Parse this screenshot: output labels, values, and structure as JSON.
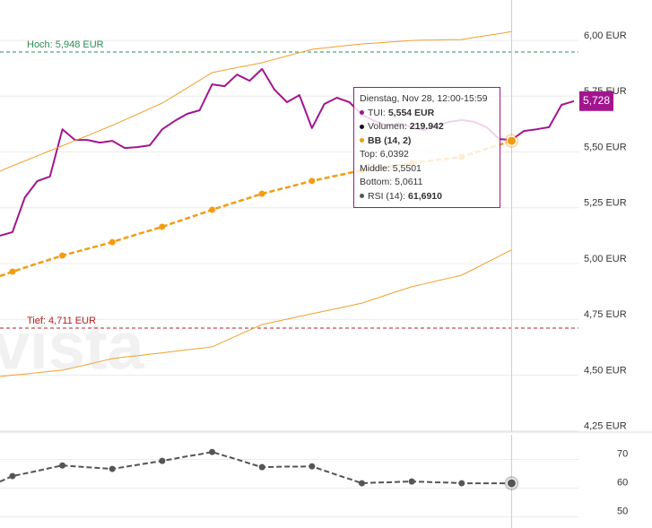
{
  "chart_data": [
    {
      "type": "line",
      "categories": [
        null,
        null,
        null,
        null,
        null,
        null,
        null,
        null,
        null,
        null,
        null,
        null,
        null,
        null,
        null,
        null,
        null,
        null,
        null,
        null,
        null,
        null,
        null,
        null,
        null,
        null,
        null,
        null,
        null,
        null,
        null,
        null,
        null,
        null,
        null,
        null,
        null,
        null,
        null,
        null,
        null,
        null,
        null,
        null,
        null,
        null,
        null
      ],
      "ylim": [
        4.245,
        6.181
      ],
      "yticks": [
        {
          "value": 6.0,
          "label": "6,00 EUR"
        },
        {
          "value": 5.75,
          "label": "5,75 EUR"
        },
        {
          "value": 5.5,
          "label": "5,50 EUR"
        },
        {
          "value": 5.25,
          "label": "5,25 EUR"
        },
        {
          "value": 5.0,
          "label": "5,00 EUR"
        },
        {
          "value": 4.75,
          "label": "4,75 EUR"
        },
        {
          "value": 4.5,
          "label": "4,50 EUR"
        },
        {
          "value": 4.25,
          "label": "4,25 EUR"
        }
      ],
      "grid": true,
      "highlight_index": 41,
      "watermark": "vista",
      "annotations": [
        {
          "label": "Hoch: 5,948 EUR",
          "value": 5.948,
          "color": "#2e8b57"
        },
        {
          "label": "Tief: 4,711 EUR",
          "value": 4.711,
          "color": "#b22222"
        }
      ],
      "series": [
        {
          "color": "#a3158f",
          "width": 2,
          "values": [
            5.125,
            5.141,
            5.297,
            5.37,
            5.39,
            5.602,
            5.554,
            5.554,
            5.542,
            5.55,
            5.518,
            5.522,
            5.53,
            5.602,
            5.639,
            5.671,
            5.687,
            5.803,
            5.795,
            5.847,
            5.819,
            5.872,
            5.779,
            5.723,
            5.755,
            5.607,
            5.715,
            5.743,
            5.723,
            5.667,
            5.639,
            5.619,
            5.627,
            5.611,
            5.598,
            5.619,
            5.635,
            5.643,
            5.635,
            5.611,
            5.558,
            5.554,
            5.594,
            5.602,
            5.611,
            5.711,
            5.728
          ],
          "value_labels": [
            null,
            null,
            null,
            null,
            null,
            null,
            null,
            null,
            null,
            null,
            null,
            null,
            null,
            null,
            null,
            null,
            null,
            null,
            null,
            null,
            null,
            null,
            null,
            null,
            null,
            null,
            null,
            null,
            null,
            null,
            null,
            null,
            null,
            null,
            null,
            null,
            null,
            null,
            null,
            null,
            null,
            null,
            null,
            null,
            null,
            null,
            "5,728"
          ]
        },
        {
          "color": "#f0a030",
          "width": 1,
          "values": [
            5.414,
            5.438,
            5.46,
            5.483,
            5.506,
            5.528,
            5.551,
            5.573,
            5.596,
            5.619,
            5.644,
            5.669,
            5.694,
            5.719,
            5.753,
            5.787,
            5.821,
            5.856,
            5.867,
            5.878,
            5.889,
            5.9,
            5.915,
            5.93,
            5.945,
            5.96,
            5.966,
            5.972,
            5.978,
            5.984,
            5.988,
            5.992,
            5.996,
            6.0,
            6.001,
            6.002,
            6.003,
            6.004,
            6.013,
            6.022,
            6.03,
            6.0392,
            null,
            null,
            null,
            null,
            null
          ]
        },
        {
          "color": "#f39c12",
          "width": 2.5,
          "dashed": true,
          "markers": true,
          "values": [
            4.944,
            4.964,
            4.982,
            5.0,
            5.018,
            5.036,
            5.051,
            5.066,
            5.081,
            5.096,
            5.114,
            5.131,
            5.148,
            5.165,
            5.184,
            5.203,
            5.222,
            5.241,
            5.259,
            5.277,
            5.295,
            5.313,
            5.327,
            5.341,
            5.356,
            5.37,
            5.382,
            5.394,
            5.406,
            5.418,
            5.426,
            5.434,
            5.442,
            5.45,
            5.457,
            5.464,
            5.471,
            5.478,
            5.496,
            5.514,
            5.532,
            5.5501,
            null,
            null,
            null,
            null,
            null
          ]
        },
        {
          "color": "#f0a030",
          "width": 1,
          "values": [
            4.494,
            4.5,
            4.505,
            4.511,
            4.517,
            4.522,
            4.535,
            4.548,
            4.561,
            4.574,
            4.581,
            4.587,
            4.594,
            4.6,
            4.607,
            4.614,
            4.62,
            4.627,
            4.652,
            4.677,
            4.702,
            4.727,
            4.739,
            4.751,
            4.763,
            4.775,
            4.787,
            4.799,
            4.811,
            4.823,
            4.841,
            4.86,
            4.878,
            4.896,
            4.909,
            4.922,
            4.935,
            4.948,
            4.976,
            5.005,
            5.033,
            5.0611,
            null,
            null,
            null,
            null,
            null
          ]
        }
      ]
    },
    {
      "type": "line",
      "categories": [
        null,
        null,
        null,
        null,
        null,
        null,
        null,
        null,
        null,
        null,
        null,
        null,
        null,
        null,
        null,
        null,
        null,
        null,
        null,
        null,
        null,
        null,
        null,
        null,
        null,
        null,
        null,
        null,
        null,
        null,
        null,
        null,
        null,
        null,
        null,
        null,
        null,
        null,
        null,
        null,
        null,
        null,
        null,
        null,
        null,
        null,
        null
      ],
      "ylim": [
        46.1,
        78.6
      ],
      "yticks": [
        70,
        60,
        50
      ],
      "grid": true,
      "highlight_index": 41,
      "series": [
        {
          "color": "#555555",
          "width": 2,
          "dashed": true,
          "markers": true,
          "values": [
            62.3,
            64.2,
            65.1,
            66.0,
            67.0,
            67.9,
            67.6,
            67.3,
            67.0,
            66.7,
            67.4,
            68.1,
            68.8,
            69.5,
            70.3,
            71.1,
            71.8,
            72.6,
            71.3,
            70.0,
            68.6,
            67.3,
            67.4,
            67.5,
            67.5,
            67.6,
            66.1,
            64.6,
            63.2,
            61.7,
            61.9,
            62.0,
            62.2,
            62.3,
            62.2,
            62.0,
            61.9,
            61.7,
            61.7,
            61.7,
            61.7,
            61.691,
            null,
            null,
            null,
            null,
            null
          ]
        }
      ]
    }
  ],
  "tooltip": {
    "title": "Dienstag, Nov 28, 12:00-15:59",
    "rows": [
      [
        "TUI:",
        "5,554 EUR"
      ],
      [
        "Volumen:",
        "219.942"
      ],
      [
        "BB (14, 2)"
      ],
      [
        "Top: 6,0392"
      ],
      [
        "Middle: 5,5501"
      ],
      [
        "Bottom: 5,0611"
      ],
      [
        "RSI (14):",
        "61,6910"
      ]
    ]
  }
}
